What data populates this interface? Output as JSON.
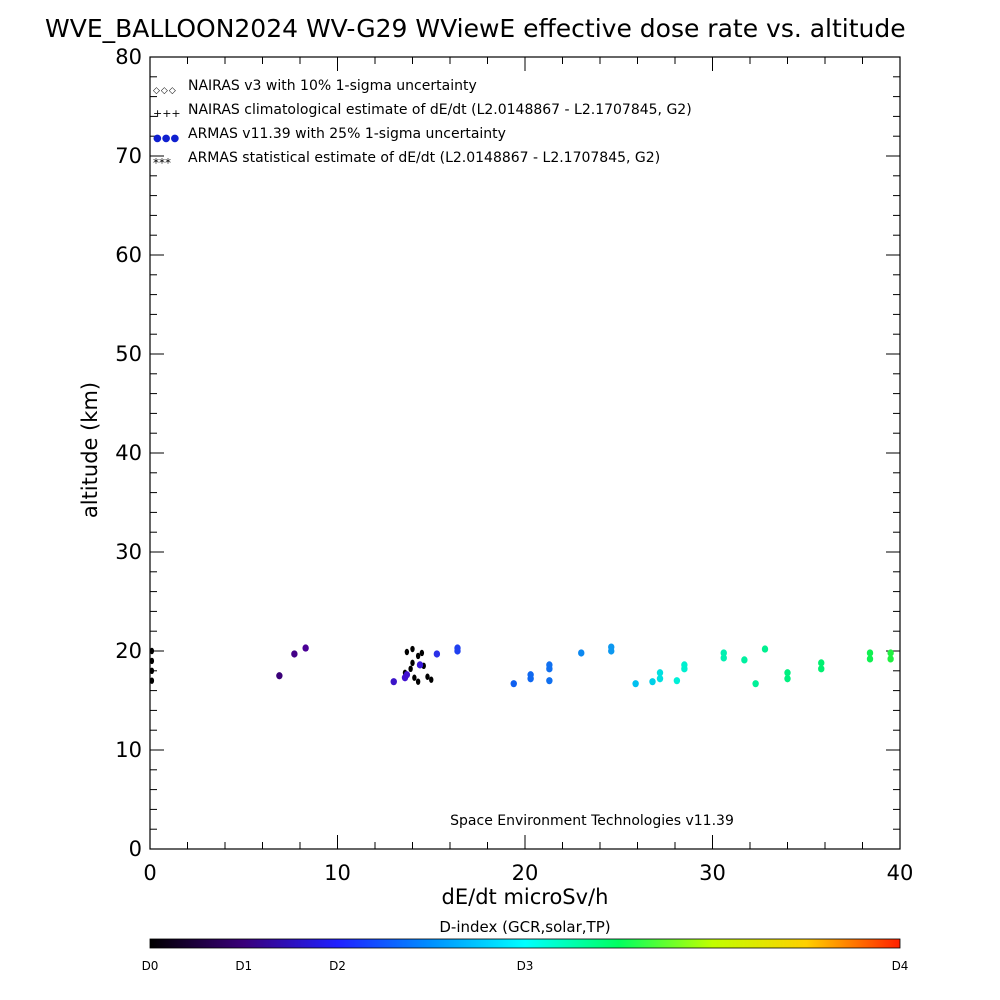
{
  "chart_data": {
    "type": "scatter",
    "title": "WVE_BALLOON2024 WV-G29 WViewE effective dose rate vs. altitude",
    "xlabel": "dE/dt microSv/h",
    "ylabel": "altitude (km)",
    "xlim": [
      0,
      40
    ],
    "ylim": [
      0,
      80
    ],
    "x_ticks": [
      "0",
      "10",
      "20",
      "30",
      "40"
    ],
    "y_ticks": [
      "0",
      "10",
      "20",
      "30",
      "40",
      "50",
      "60",
      "70",
      "80"
    ],
    "grid": false,
    "legend_position": "top-left",
    "legend": [
      {
        "symbol": "◇◇◇",
        "text": "NAIRAS v3 with 10% 1-sigma uncertainty"
      },
      {
        "symbol": "+++",
        "text": "NAIRAS climatological estimate of dE/dt (L2.0148867 - L2.1707845, G2)"
      },
      {
        "symbol": "●●●",
        "text": "ARMAS v11.39 with 25% 1-sigma uncertainty"
      },
      {
        "symbol": "***",
        "text": "ARMAS statistical estimate of dE/dt (L2.0148867 - L2.1707845, G2)"
      }
    ],
    "annotation": "Space Environment Technologies v11.39",
    "colorbar": {
      "title": "D-index (GCR,solar,TP)",
      "labels": [
        {
          "text": "D0",
          "value": 0
        },
        {
          "text": "D1",
          "value": 0.125
        },
        {
          "text": "D2",
          "value": 0.25
        },
        {
          "text": "D3",
          "value": 0.5
        },
        {
          "text": "D4",
          "value": 1.0
        }
      ],
      "stops": [
        "#000000",
        "#3a007a",
        "#2020ff",
        "#0090ff",
        "#00ffff",
        "#00ff60",
        "#c0ff00",
        "#ffd000",
        "#ff2000"
      ]
    },
    "series": [
      {
        "marker": "black-points",
        "color": "#000000",
        "points": [
          [
            0.1,
            17.0
          ],
          [
            0.1,
            18.0
          ],
          [
            0.1,
            19.0
          ],
          [
            0.1,
            20.0
          ],
          [
            13.6,
            17.8
          ],
          [
            13.7,
            19.9
          ],
          [
            13.9,
            18.2
          ],
          [
            14.0,
            18.8
          ],
          [
            14.0,
            20.2
          ],
          [
            14.1,
            17.3
          ],
          [
            14.3,
            16.9
          ],
          [
            14.3,
            19.5
          ],
          [
            14.5,
            19.8
          ],
          [
            14.8,
            17.4
          ],
          [
            15.0,
            17.1
          ],
          [
            14.6,
            18.5
          ]
        ]
      },
      {
        "marker": "colored-dots",
        "points": [
          {
            "x": 6.9,
            "y": 17.5,
            "color": "#3a0078"
          },
          {
            "x": 7.7,
            "y": 19.7,
            "color": "#440088"
          },
          {
            "x": 8.3,
            "y": 20.3,
            "color": "#4a0096"
          },
          {
            "x": 13.0,
            "y": 16.9,
            "color": "#3c14c8"
          },
          {
            "x": 13.6,
            "y": 17.3,
            "color": "#4010d0"
          },
          {
            "x": 13.7,
            "y": 17.6,
            "color": "#4010d0"
          },
          {
            "x": 14.4,
            "y": 18.6,
            "color": "#3818d8"
          },
          {
            "x": 15.3,
            "y": 19.7,
            "color": "#2a30e8"
          },
          {
            "x": 16.4,
            "y": 20.0,
            "color": "#2040f0"
          },
          {
            "x": 16.4,
            "y": 20.3,
            "color": "#2040f0"
          },
          {
            "x": 19.4,
            "y": 16.7,
            "color": "#1060f0"
          },
          {
            "x": 20.3,
            "y": 17.2,
            "color": "#1068f0"
          },
          {
            "x": 20.3,
            "y": 17.6,
            "color": "#1068f0"
          },
          {
            "x": 21.3,
            "y": 17.0,
            "color": "#1070f0"
          },
          {
            "x": 21.3,
            "y": 18.2,
            "color": "#1070f0"
          },
          {
            "x": 21.3,
            "y": 18.6,
            "color": "#1070f0"
          },
          {
            "x": 23.0,
            "y": 19.8,
            "color": "#0c88f0"
          },
          {
            "x": 24.6,
            "y": 20.0,
            "color": "#0c98f0"
          },
          {
            "x": 24.6,
            "y": 20.4,
            "color": "#0c98f0"
          },
          {
            "x": 25.9,
            "y": 16.7,
            "color": "#00c0f0"
          },
          {
            "x": 26.8,
            "y": 16.9,
            "color": "#00d0e8"
          },
          {
            "x": 27.2,
            "y": 17.2,
            "color": "#00e0e0"
          },
          {
            "x": 27.2,
            "y": 17.8,
            "color": "#00e0e0"
          },
          {
            "x": 28.1,
            "y": 17.0,
            "color": "#00f0d8"
          },
          {
            "x": 28.5,
            "y": 18.2,
            "color": "#00f0d0"
          },
          {
            "x": 28.5,
            "y": 18.6,
            "color": "#00f0d0"
          },
          {
            "x": 30.6,
            "y": 19.3,
            "color": "#00f0b0"
          },
          {
            "x": 30.6,
            "y": 19.8,
            "color": "#00f0b0"
          },
          {
            "x": 31.7,
            "y": 19.1,
            "color": "#00f0a0"
          },
          {
            "x": 32.3,
            "y": 16.7,
            "color": "#00f098"
          },
          {
            "x": 32.8,
            "y": 20.2,
            "color": "#00f090"
          },
          {
            "x": 34.0,
            "y": 17.2,
            "color": "#00f080"
          },
          {
            "x": 34.0,
            "y": 17.8,
            "color": "#00f080"
          },
          {
            "x": 35.8,
            "y": 18.2,
            "color": "#00f070"
          },
          {
            "x": 35.8,
            "y": 18.8,
            "color": "#00f070"
          },
          {
            "x": 38.4,
            "y": 19.2,
            "color": "#10f050"
          },
          {
            "x": 38.4,
            "y": 19.8,
            "color": "#10f050"
          },
          {
            "x": 39.5,
            "y": 19.2,
            "color": "#20f040"
          },
          {
            "x": 39.5,
            "y": 19.8,
            "color": "#20f040"
          }
        ]
      }
    ]
  }
}
